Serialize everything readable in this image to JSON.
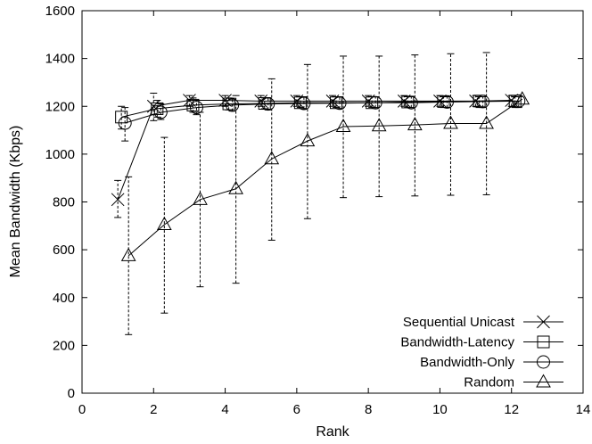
{
  "chart_data": {
    "type": "line",
    "title": "",
    "xlabel": "Rank",
    "ylabel": "Mean Bandwidth (Kbps)",
    "xlim": [
      0,
      14
    ],
    "ylim": [
      0,
      1600
    ],
    "xticks": [
      "0",
      "2",
      "4",
      "6",
      "8",
      "10",
      "12",
      "14"
    ],
    "yticks": [
      "0",
      "200",
      "400",
      "600",
      "800",
      "1000",
      "1200",
      "1400",
      "1600"
    ],
    "grid": false,
    "legend_position": "bottom-right",
    "series": [
      {
        "name": "Sequential Unicast",
        "marker": "cross",
        "x": [
          1.0,
          2.0,
          3.0,
          4.0,
          5.0,
          6.0,
          7.0,
          8.0,
          9.0,
          10.0,
          11.0,
          12.0
        ],
        "y": [
          810,
          1200,
          1225,
          1225,
          1222,
          1222,
          1222,
          1222,
          1222,
          1222,
          1222,
          1225
        ],
        "err_low": [
          735,
          1140,
          1200,
          1200,
          1200,
          1200,
          1200,
          1200,
          1200,
          1200,
          1200,
          1200
        ],
        "err_high": [
          890,
          1255,
          1245,
          1245,
          1245,
          1245,
          1245,
          1245,
          1245,
          1245,
          1245,
          1245
        ]
      },
      {
        "name": "Bandwidth-Latency",
        "marker": "square",
        "x": [
          1.1,
          2.1,
          3.1,
          4.1,
          5.1,
          6.1,
          7.1,
          8.1,
          9.1,
          10.1,
          11.1,
          12.1
        ],
        "y": [
          1155,
          1190,
          1205,
          1210,
          1212,
          1215,
          1215,
          1215,
          1218,
          1220,
          1222,
          1222
        ],
        "err_low": [
          1105,
          1155,
          1175,
          1185,
          1190,
          1195,
          1195,
          1195,
          1195,
          1195,
          1195,
          1195
        ],
        "err_high": [
          1200,
          1225,
          1235,
          1235,
          1235,
          1240,
          1240,
          1240,
          1240,
          1240,
          1240,
          1240
        ]
      },
      {
        "name": "Bandwidth-Only",
        "marker": "circle",
        "x": [
          1.2,
          2.2,
          3.2,
          4.2,
          5.2,
          6.2,
          7.2,
          8.2,
          9.2,
          10.2,
          11.2,
          12.2
        ],
        "y": [
          1130,
          1175,
          1195,
          1205,
          1210,
          1212,
          1213,
          1215,
          1215,
          1218,
          1220,
          1222
        ],
        "err_low": [
          1055,
          1145,
          1165,
          1180,
          1185,
          1190,
          1190,
          1195,
          1195,
          1195,
          1195,
          1195
        ],
        "err_high": [
          1195,
          1210,
          1225,
          1230,
          1235,
          1240,
          1240,
          1240,
          1240,
          1240,
          1240,
          1240
        ]
      },
      {
        "name": "Random",
        "marker": "triangle",
        "x": [
          1.3,
          2.3,
          3.3,
          4.3,
          5.3,
          6.3,
          7.3,
          8.3,
          9.3,
          10.3,
          11.3,
          12.3
        ],
        "y": [
          575,
          705,
          810,
          855,
          980,
          1055,
          1115,
          1118,
          1122,
          1128,
          1128,
          1230
        ],
        "err_low": [
          245,
          335,
          445,
          460,
          640,
          730,
          818,
          822,
          825,
          828,
          830,
          1230
        ],
        "err_high": [
          905,
          1070,
          1175,
          1245,
          1315,
          1375,
          1410,
          1410,
          1415,
          1420,
          1425,
          1230
        ]
      }
    ]
  }
}
